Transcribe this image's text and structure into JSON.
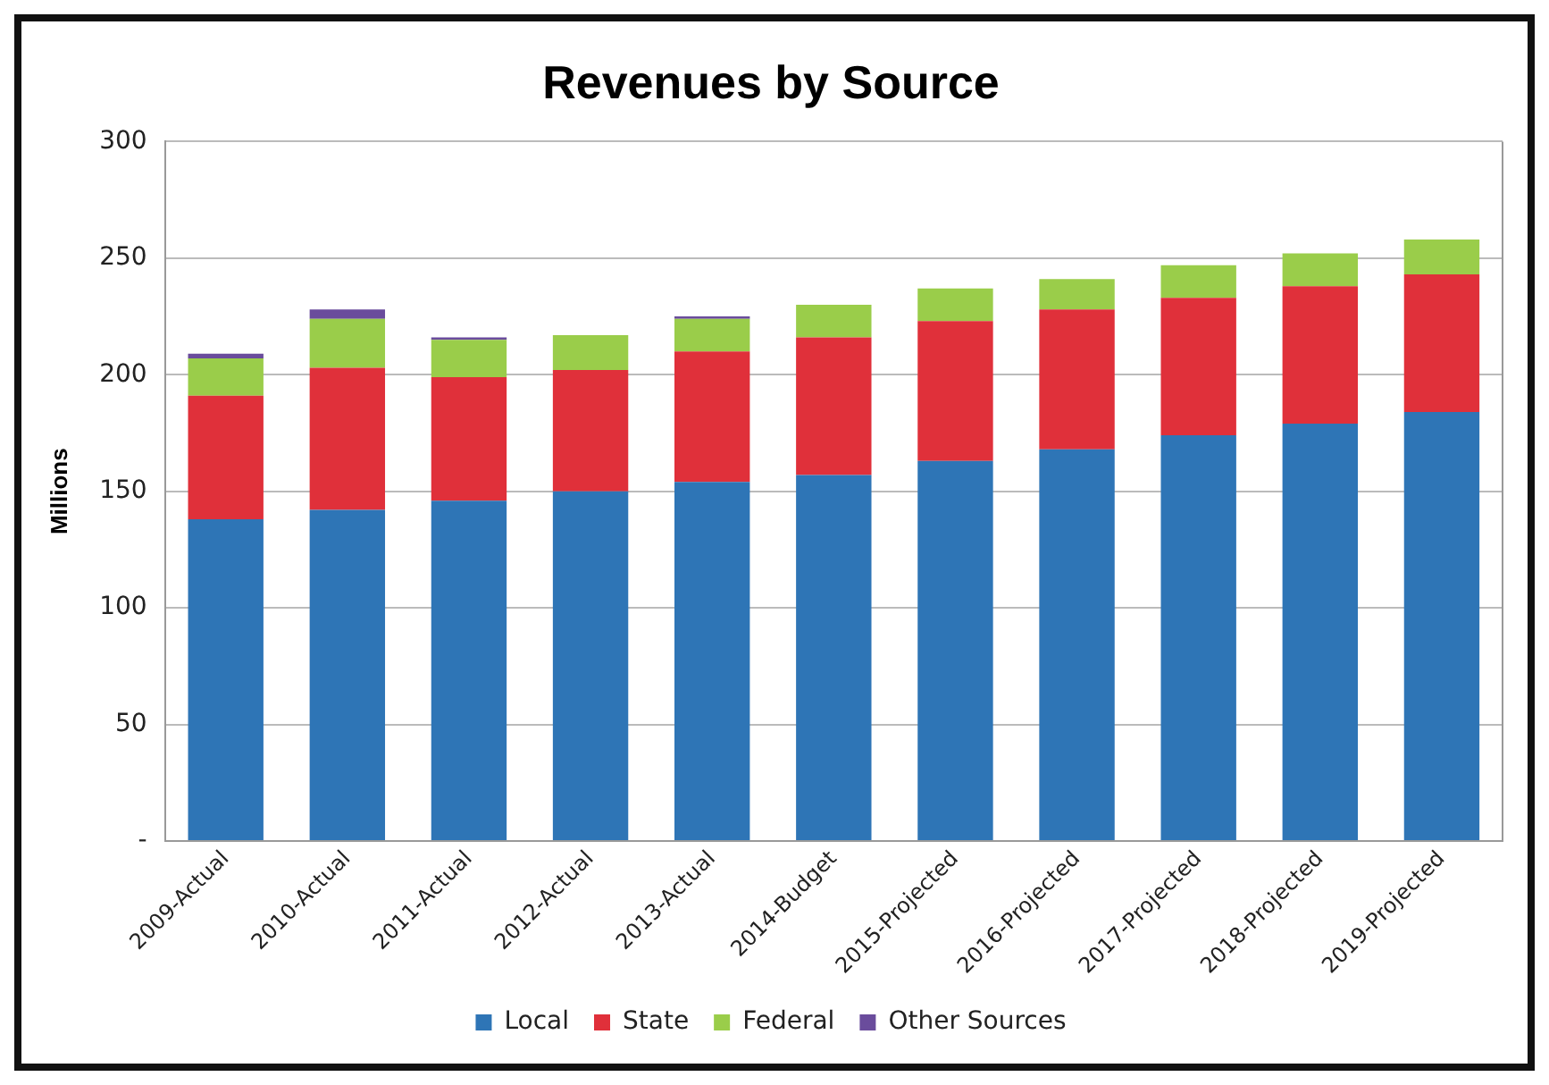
{
  "chart_data": {
    "type": "bar",
    "title": "Revenues by Source",
    "ylabel": "Millions",
    "stacked": true,
    "categories": [
      "2009-Actual",
      "2010-Actual",
      "2011-Actual",
      "2012-Actual",
      "2013-Actual",
      "2014-Budget",
      "2015-Projected",
      "2016-Projected",
      "2017-Projected",
      "2018-Projected",
      "2019-Projected"
    ],
    "series": [
      {
        "name": "Local",
        "color": "#2e75b6",
        "values": [
          138,
          142,
          146,
          150,
          154,
          157,
          163,
          168,
          174,
          179,
          184
        ]
      },
      {
        "name": "State",
        "color": "#e0303a",
        "values": [
          53,
          61,
          53,
          52,
          56,
          59,
          60,
          60,
          59,
          59,
          59
        ]
      },
      {
        "name": "Federal",
        "color": "#9acd4a",
        "values": [
          16,
          21,
          16,
          15,
          14,
          14,
          14,
          13,
          14,
          14,
          15
        ]
      },
      {
        "name": "Other Sources",
        "color": "#6a4c9c",
        "values": [
          2,
          4,
          1,
          0,
          1,
          0,
          0,
          0,
          0,
          0,
          0
        ]
      }
    ],
    "ylim": [
      0,
      300
    ],
    "yticks": [
      {
        "value": 0,
        "label": "-"
      },
      50,
      100,
      150,
      200,
      250,
      300
    ],
    "grid": "y",
    "legend": "bottom"
  }
}
